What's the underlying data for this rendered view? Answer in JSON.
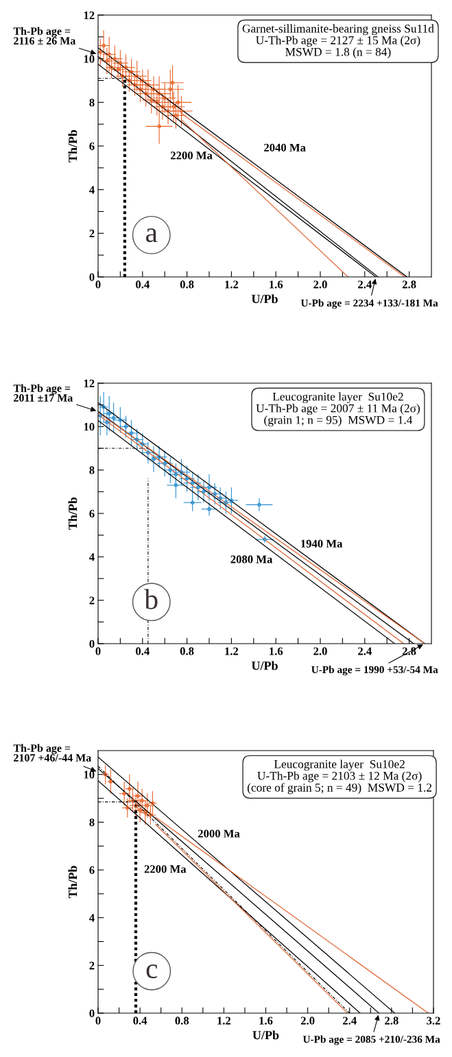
{
  "chart_data": [
    {
      "type": "scatter",
      "xlabel": "U/Pb",
      "ylabel": "Th/Pb",
      "xlim": [
        0,
        3.0
      ],
      "ylim": [
        0,
        12
      ],
      "xticks": [
        0,
        {
          "value": 0.2,
          "label": null
        },
        {
          "value": 0.4,
          "label": "0.4"
        },
        {
          "value": 0.6,
          "label": null
        },
        {
          "value": 0.8,
          "label": "0.8"
        },
        {
          "value": 1.0,
          "label": null
        },
        {
          "value": 1.2,
          "label": "1.2"
        },
        {
          "value": 1.4,
          "label": null
        },
        {
          "value": 1.6,
          "label": "1.6"
        },
        {
          "value": 1.8,
          "label": null
        },
        {
          "value": 2.0,
          "label": "2.0"
        },
        {
          "value": 2.2,
          "label": null
        },
        {
          "value": 2.4,
          "label": "2.4"
        },
        {
          "value": 2.6,
          "label": null
        },
        {
          "value": 2.8,
          "label": "2.8"
        }
      ],
      "yticks": [
        0,
        {
          "value": 1,
          "label": null
        },
        2,
        {
          "value": 3,
          "label": null
        },
        4,
        {
          "value": 5,
          "label": null
        },
        6,
        {
          "value": 7,
          "label": null
        },
        8,
        {
          "value": 9,
          "label": null
        },
        10,
        {
          "value": 11,
          "label": null
        },
        12
      ],
      "series": [
        {
          "marker": "circle",
          "color": "#e8642a",
          "x": [
            0.02,
            0.05,
            0.08,
            0.1,
            0.12,
            0.15,
            0.18,
            0.2,
            0.22,
            0.25,
            0.28,
            0.3,
            0.33,
            0.35,
            0.38,
            0.4,
            0.43,
            0.45,
            0.48,
            0.5,
            0.53,
            0.55,
            0.58,
            0.6,
            0.63,
            0.65,
            0.68,
            0.7,
            0.72,
            0.75,
            0.55,
            0.67
          ],
          "values": [
            10.3,
            10.6,
            9.9,
            10.2,
            9.6,
            10.0,
            9.5,
            9.8,
            9.2,
            9.6,
            9.0,
            9.4,
            8.8,
            9.2,
            8.6,
            9.0,
            8.4,
            8.8,
            8.1,
            8.6,
            8.0,
            8.4,
            7.8,
            8.2,
            7.6,
            8.6,
            7.8,
            7.4,
            8.0,
            7.6,
            6.9,
            8.9
          ],
          "xerrors": [
            0.04,
            0.05,
            0.06,
            0.06,
            0.05,
            0.07,
            0.06,
            0.07,
            0.06,
            0.08,
            0.07,
            0.08,
            0.07,
            0.09,
            0.07,
            0.08,
            0.08,
            0.1,
            0.08,
            0.09,
            0.08,
            0.1,
            0.09,
            0.1,
            0.08,
            0.12,
            0.1,
            0.09,
            0.12,
            0.1,
            0.12,
            0.1
          ],
          "errors": [
            0.6,
            0.7,
            0.6,
            0.8,
            0.5,
            0.6,
            0.5,
            0.6,
            0.5,
            0.6,
            0.5,
            0.6,
            0.5,
            0.7,
            0.6,
            0.5,
            0.6,
            0.7,
            0.6,
            0.6,
            0.6,
            0.8,
            0.6,
            0.7,
            0.6,
            0.9,
            0.7,
            0.6,
            0.8,
            0.7,
            0.8,
            0.8
          ]
        },
        {
          "type": "line",
          "color": "#000000",
          "line_style": "solid",
          "x": [
            0,
            2.78
          ],
          "values": [
            10.5,
            0
          ]
        },
        {
          "type": "line",
          "color": "#000000",
          "line_style": "solid",
          "x": [
            0,
            2.52
          ],
          "values": [
            10.1,
            0
          ]
        },
        {
          "type": "line",
          "color": "#000000",
          "line_style": "solid",
          "x": [
            0,
            2.5
          ],
          "values": [
            9.75,
            0
          ]
        },
        {
          "type": "line",
          "color": "#e06a3a",
          "line_style": "solid",
          "x": [
            0.75,
            2.76
          ],
          "values": [
            7.5,
            0
          ]
        },
        {
          "type": "line",
          "color": "#e06a3a",
          "line_style": "solid",
          "x": [
            0.75,
            2.25
          ],
          "values": [
            7.2,
            0
          ]
        },
        {
          "type": "line",
          "color": "#000000",
          "line_style": "dotted",
          "x": [
            0.24,
            0.24
          ],
          "values": [
            0,
            9.2
          ]
        },
        {
          "type": "line",
          "color": "#000000",
          "line_style": "dashed",
          "x": [
            0,
            0.24
          ],
          "values": [
            9.1,
            9.1
          ]
        }
      ],
      "annotations": [
        "Garnet-sillimanite-bearing gneiss Su11d",
        "U-Th-Pb age = 2127 ± 15 Ma (2σ)",
        "MSWD = 1.8 (n = 84)",
        {
          "text": "Th-Pb age =\n2116 ± 26 Ma",
          "x": 0,
          "y": 10.2
        },
        {
          "text": "U-Pb age = 2234 +133/-181 Ma",
          "x": 2.5,
          "y": 0
        },
        "2200 Ma",
        "2040 Ma",
        "a"
      ]
    },
    {
      "type": "scatter",
      "xlabel": "U/Pb",
      "ylabel": "Th/Pb",
      "xlim": [
        0,
        3.0
      ],
      "ylim": [
        0,
        12
      ],
      "xticks": [
        0,
        {
          "value": 0.2,
          "label": null
        },
        {
          "value": 0.4,
          "label": "0.4"
        },
        {
          "value": 0.6,
          "label": null
        },
        {
          "value": 0.8,
          "label": "0.8"
        },
        {
          "value": 1.0,
          "label": null
        },
        {
          "value": 1.2,
          "label": "1.2"
        },
        {
          "value": 1.4,
          "label": null
        },
        {
          "value": 1.6,
          "label": "1.6"
        },
        {
          "value": 1.8,
          "label": null
        },
        {
          "value": 2.0,
          "label": "2.0"
        },
        {
          "value": 2.2,
          "label": null
        },
        {
          "value": 2.4,
          "label": "2.4"
        },
        {
          "value": 2.6,
          "label": null
        },
        {
          "value": 2.8,
          "label": "2.8"
        }
      ],
      "yticks": [
        0,
        {
          "value": 1,
          "label": null
        },
        2,
        {
          "value": 3,
          "label": null
        },
        4,
        {
          "value": 5,
          "label": null
        },
        6,
        {
          "value": 7,
          "label": null
        },
        8,
        {
          "value": 9,
          "label": null
        },
        10,
        {
          "value": 11,
          "label": null
        },
        12
      ],
      "series": [
        {
          "marker": "circle",
          "color": "#2a8fd0",
          "x": [
            0.02,
            0.05,
            0.08,
            0.1,
            0.14,
            0.2,
            0.25,
            0.3,
            0.35,
            0.4,
            0.45,
            0.5,
            0.55,
            0.6,
            0.65,
            0.7,
            0.75,
            0.8,
            0.85,
            0.9,
            0.95,
            1.0,
            1.05,
            1.1,
            1.15,
            1.2,
            0.85,
            1.0,
            1.45,
            1.5,
            0.7
          ],
          "values": [
            10.5,
            10.9,
            10.2,
            10.6,
            10.4,
            10.3,
            10.0,
            9.7,
            9.4,
            9.2,
            8.8,
            8.5,
            8.6,
            8.3,
            8.0,
            7.8,
            7.9,
            7.6,
            7.4,
            7.2,
            7.0,
            7.2,
            6.9,
            6.7,
            6.5,
            6.6,
            6.5,
            6.2,
            6.4,
            4.8,
            7.3
          ],
          "xerrors": [
            0.03,
            0.04,
            0.04,
            0.05,
            0.05,
            0.06,
            0.05,
            0.06,
            0.06,
            0.05,
            0.06,
            0.06,
            0.07,
            0.07,
            0.06,
            0.07,
            0.08,
            0.07,
            0.08,
            0.07,
            0.06,
            0.07,
            0.07,
            0.06,
            0.07,
            0.06,
            0.08,
            0.07,
            0.12,
            0.08,
            0.08
          ],
          "errors": [
            0.9,
            0.7,
            0.6,
            0.8,
            0.7,
            0.6,
            0.5,
            0.6,
            0.5,
            0.5,
            0.5,
            0.6,
            0.5,
            0.6,
            0.6,
            0.5,
            0.6,
            0.6,
            0.5,
            0.6,
            0.5,
            0.6,
            0.5,
            0.5,
            0.5,
            0.6,
            0.4,
            0.3,
            0.3,
            0.15,
            0.6
          ]
        },
        {
          "type": "line",
          "color": "#000000",
          "line_style": "solid",
          "x": [
            0,
            2.94
          ],
          "values": [
            11.1,
            0
          ]
        },
        {
          "type": "line",
          "color": "#000000",
          "line_style": "solid",
          "x": [
            0,
            2.84
          ],
          "values": [
            10.7,
            0
          ]
        },
        {
          "type": "line",
          "color": "#000000",
          "line_style": "solid",
          "x": [
            0,
            2.67
          ],
          "values": [
            10.28,
            0
          ]
        },
        {
          "type": "line",
          "color": "#e06a3a",
          "line_style": "solid",
          "x": [
            0,
            2.75
          ],
          "values": [
            10.55,
            0
          ]
        },
        {
          "type": "line",
          "color": "#e06a3a",
          "line_style": "solid",
          "x": [
            0,
            2.94
          ],
          "values": [
            10.65,
            0
          ]
        },
        {
          "type": "line",
          "color": "#000000",
          "line_style": "dashed",
          "x": [
            0.45,
            0.45
          ],
          "values": [
            0,
            7.6
          ]
        },
        {
          "type": "line",
          "color": "#000000",
          "line_style": "dashed",
          "x": [
            0,
            0.45
          ],
          "values": [
            9.0,
            9.0
          ]
        }
      ],
      "annotations": [
        "Leucogranite layer  Su10e2",
        "U-Th-Pb age = 2007 ± 11 Ma (2σ)",
        "(grain 1; n = 95)  MSWD = 1.4",
        {
          "text": "Th-Pb age =\n2011 ±17 Ma",
          "x": 0,
          "y": 10.7
        },
        {
          "text": "U-Pb age = 1990 +53/-54 Ma",
          "x": 2.94,
          "y": 0
        },
        "1940 Ma",
        "2080 Ma",
        "b"
      ]
    },
    {
      "type": "scatter",
      "xlabel": "U/Pb",
      "ylabel": "Th/Pb",
      "xlim": [
        0,
        3.2
      ],
      "ylim": [
        0,
        11
      ],
      "xticks": [
        0,
        {
          "value": 0.2,
          "label": null
        },
        {
          "value": 0.4,
          "label": "0.4"
        },
        {
          "value": 0.6,
          "label": null
        },
        {
          "value": 0.8,
          "label": "0.8"
        },
        {
          "value": 1.0,
          "label": null
        },
        {
          "value": 1.2,
          "label": "1.2"
        },
        {
          "value": 1.4,
          "label": null
        },
        {
          "value": 1.6,
          "label": "1.6"
        },
        {
          "value": 1.8,
          "label": null
        },
        {
          "value": 2.0,
          "label": "2.0"
        },
        {
          "value": 2.2,
          "label": null
        },
        {
          "value": 2.4,
          "label": "2.4"
        },
        {
          "value": 2.6,
          "label": null
        },
        {
          "value": 2.8,
          "label": "2.8"
        },
        {
          "value": 3.0,
          "label": null
        },
        {
          "value": 3.2,
          "label": "3.2"
        }
      ],
      "yticks": [
        0,
        {
          "value": 1,
          "label": null
        },
        2,
        {
          "value": 3,
          "label": null
        },
        4,
        {
          "value": 5,
          "label": null
        },
        6,
        {
          "value": 7,
          "label": null
        },
        8,
        {
          "value": 9,
          "label": null
        },
        10
      ],
      "series": [
        {
          "marker": "circle",
          "color": "#e8642a",
          "x": [
            0.07,
            0.12,
            0.25,
            0.3,
            0.33,
            0.36,
            0.38,
            0.4,
            0.42,
            0.45,
            0.47,
            0.5,
            0.52,
            0.28
          ],
          "values": [
            10.0,
            9.7,
            9.2,
            9.4,
            8.9,
            8.7,
            9.1,
            8.5,
            8.9,
            8.4,
            8.7,
            8.3,
            8.8,
            8.6
          ],
          "xerrors": [
            0.03,
            0.03,
            0.05,
            0.04,
            0.05,
            0.06,
            0.05,
            0.06,
            0.06,
            0.05,
            0.05,
            0.05,
            0.04,
            0.05
          ],
          "errors": [
            0.4,
            0.5,
            0.5,
            0.6,
            0.5,
            0.5,
            0.6,
            0.5,
            0.5,
            0.5,
            0.5,
            0.4,
            0.5,
            0.4
          ]
        },
        {
          "type": "line",
          "color": "#000000",
          "line_style": "solid",
          "x": [
            0,
            2.83
          ],
          "values": [
            10.73,
            0
          ]
        },
        {
          "type": "line",
          "color": "#000000",
          "line_style": "solid",
          "x": [
            0,
            2.68
          ],
          "values": [
            10.25,
            0
          ]
        },
        {
          "type": "line",
          "color": "#000000",
          "line_style": "solid",
          "x": [
            0,
            2.5
          ],
          "values": [
            9.74,
            0
          ]
        },
        {
          "type": "line",
          "color": "#000000",
          "line_style": "dashed",
          "x": [
            0,
            2.4
          ],
          "values": [
            10.35,
            0
          ]
        },
        {
          "type": "line",
          "color": "#e06a3a",
          "line_style": "solid",
          "x": [
            0.55,
            3.15
          ],
          "values": [
            8.2,
            0
          ]
        },
        {
          "type": "line",
          "color": "#e06a3a",
          "line_style": "solid",
          "x": [
            0.55,
            2.38
          ],
          "values": [
            7.9,
            0
          ]
        },
        {
          "type": "line",
          "color": "#000000",
          "line_style": "dotted",
          "x": [
            0.36,
            0.36
          ],
          "values": [
            0,
            8.9
          ]
        },
        {
          "type": "line",
          "color": "#000000",
          "line_style": "dashed",
          "x": [
            0,
            0.36
          ],
          "values": [
            8.85,
            8.85
          ]
        }
      ],
      "annotations": [
        "Leucogranite layer  Su10e2",
        "U-Th-Pb age = 2103 ± 12 Ma (2σ)",
        "(core of grain 5; n = 49)  MSWD = 1.2",
        {
          "text": "Th-Pb age =\n2107 +46/-44 Ma",
          "x": 0,
          "y": 10.1
        },
        {
          "text": "U-Pb age = 2085 +210/-236 Ma",
          "x": 2.68,
          "y": 0
        },
        "2200 Ma",
        "2000 Ma",
        "c"
      ]
    }
  ]
}
